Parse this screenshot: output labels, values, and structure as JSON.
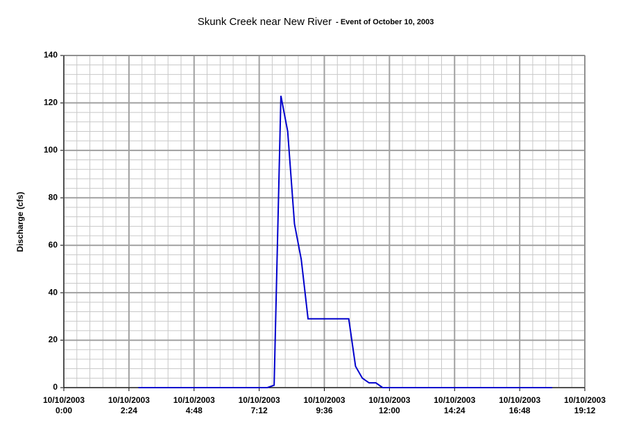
{
  "chart_data": {
    "type": "line",
    "title": "Skunk Creek near New River",
    "subtitle": "- Event of October 10, 2003",
    "y_label": "Discharge (cfs)",
    "x": [
      2.75,
      7.5,
      7.75,
      8.0,
      8.25,
      8.5,
      8.75,
      9.0,
      10.5,
      10.75,
      11.0,
      11.25,
      11.5,
      11.75,
      18.0
    ],
    "series": [
      {
        "name": "Discharge",
        "color": "#0000cc",
        "values": [
          0,
          0,
          1,
          123,
          108,
          69,
          54,
          29,
          29,
          9,
          4,
          2,
          2,
          0,
          0
        ]
      }
    ],
    "xlim": [
      0,
      19.2
    ],
    "xticks": [
      {
        "value": 0,
        "label": "10/10/2003\n0:00"
      },
      {
        "value": 2.4,
        "label": "10/10/2003\n2:24"
      },
      {
        "value": 4.8,
        "label": "10/10/2003\n4:48"
      },
      {
        "value": 7.2,
        "label": "10/10/2003\n7:12"
      },
      {
        "value": 9.6,
        "label": "10/10/2003\n9:36"
      },
      {
        "value": 12,
        "label": "10/10/2003\n12:00"
      },
      {
        "value": 14.4,
        "label": "10/10/2003\n14:24"
      },
      {
        "value": 16.8,
        "label": "10/10/2003\n16:48"
      },
      {
        "value": 19.2,
        "label": "10/10/2003\n19:12"
      }
    ],
    "ylim": [
      0,
      140
    ],
    "yticks": [
      0,
      20,
      40,
      60,
      80,
      100,
      120,
      140
    ],
    "grid": true,
    "minor_grid_divisions": 5
  }
}
